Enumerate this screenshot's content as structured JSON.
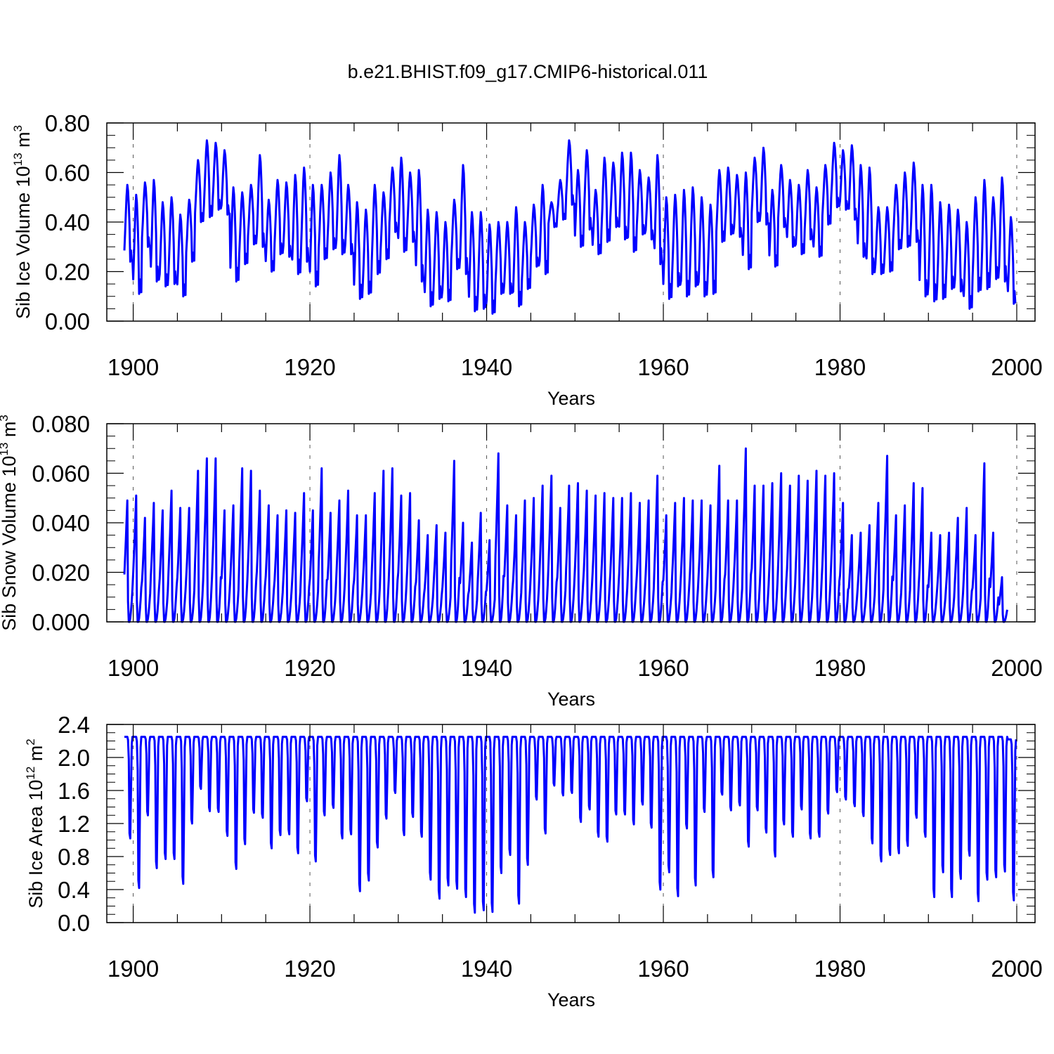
{
  "figure_title": "b.e21.BHIST.f09_g17.CMIP6-historical.011",
  "line_color": "#0000ff",
  "chart_data": [
    {
      "type": "line",
      "series_name": "Sib Ice Volume",
      "ylabel_main": "Sib Ice Volume 10",
      "ylabel_exp": "13",
      "ylabel_unit": " m",
      "ylabel_unit_exp": "3",
      "xlabel": "Years",
      "xlim": [
        1899.0,
        2000.0
      ],
      "ylim": [
        0.0,
        0.8
      ],
      "x_ticks": [
        1900,
        1920,
        1940,
        1960,
        1980,
        2000
      ],
      "x_tick_labels": [
        "1900",
        "1920",
        "1940",
        "1960",
        "1980",
        "2000"
      ],
      "y_ticks": [
        0.0,
        0.2,
        0.4,
        0.6,
        0.8
      ],
      "y_tick_labels": [
        "0.00",
        "0.20",
        "0.40",
        "0.60",
        "0.80"
      ],
      "start_year": 1899.0,
      "annual_max": [
        0.55,
        0.51,
        0.56,
        0.57,
        0.48,
        0.5,
        0.43,
        0.49,
        0.65,
        0.73,
        0.72,
        0.69,
        0.54,
        0.52,
        0.55,
        0.67,
        0.49,
        0.57,
        0.56,
        0.59,
        0.62,
        0.55,
        0.55,
        0.6,
        0.67,
        0.55,
        0.48,
        0.45,
        0.55,
        0.52,
        0.62,
        0.66,
        0.6,
        0.61,
        0.45,
        0.44,
        0.4,
        0.49,
        0.63,
        0.44,
        0.44,
        0.39,
        0.4,
        0.4,
        0.46,
        0.4,
        0.47,
        0.55,
        0.48,
        0.57,
        0.73,
        0.61,
        0.69,
        0.53,
        0.66,
        0.64,
        0.68,
        0.68,
        0.61,
        0.58,
        0.67,
        0.5,
        0.51,
        0.53,
        0.54,
        0.5,
        0.47,
        0.61,
        0.62,
        0.59,
        0.6,
        0.66,
        0.7,
        0.53,
        0.63,
        0.57,
        0.55,
        0.61,
        0.54,
        0.63,
        0.72,
        0.69,
        0.71,
        0.63,
        0.62,
        0.46,
        0.46,
        0.55,
        0.6,
        0.64,
        0.55,
        0.55,
        0.48,
        0.47,
        0.45,
        0.4,
        0.5,
        0.57,
        0.5,
        0.58,
        0.42
      ],
      "annual_min": [
        0.24,
        0.11,
        0.3,
        0.16,
        0.14,
        0.15,
        0.1,
        0.24,
        0.4,
        0.42,
        0.45,
        0.43,
        0.16,
        0.23,
        0.31,
        0.3,
        0.2,
        0.27,
        0.26,
        0.19,
        0.24,
        0.14,
        0.25,
        0.29,
        0.27,
        0.27,
        0.09,
        0.11,
        0.19,
        0.25,
        0.36,
        0.28,
        0.32,
        0.16,
        0.06,
        0.09,
        0.08,
        0.21,
        0.19,
        0.04,
        0.05,
        0.03,
        0.11,
        0.11,
        0.06,
        0.13,
        0.22,
        0.19,
        0.38,
        0.41,
        0.47,
        0.3,
        0.37,
        0.27,
        0.32,
        0.38,
        0.33,
        0.28,
        0.35,
        0.33,
        0.23,
        0.09,
        0.14,
        0.1,
        0.14,
        0.1,
        0.11,
        0.32,
        0.35,
        0.34,
        0.21,
        0.4,
        0.39,
        0.22,
        0.38,
        0.3,
        0.27,
        0.33,
        0.26,
        0.39,
        0.46,
        0.45,
        0.41,
        0.26,
        0.19,
        0.19,
        0.2,
        0.29,
        0.3,
        0.32,
        0.1,
        0.08,
        0.09,
        0.13,
        0.12,
        0.05,
        0.12,
        0.13,
        0.17,
        0.16,
        0.07
      ]
    },
    {
      "type": "line",
      "series_name": "Sib Snow Volume",
      "ylabel_main": "Sib Snow Volume 10",
      "ylabel_exp": "13",
      "ylabel_unit": " m",
      "ylabel_unit_exp": "3",
      "xlabel": "Years",
      "xlim": [
        1899.0,
        2000.0
      ],
      "ylim": [
        0.0,
        0.08
      ],
      "x_ticks": [
        1900,
        1920,
        1940,
        1960,
        1980,
        2000
      ],
      "x_tick_labels": [
        "1900",
        "1920",
        "1940",
        "1960",
        "1980",
        "2000"
      ],
      "y_ticks": [
        0.0,
        0.02,
        0.04,
        0.06,
        0.08
      ],
      "y_tick_labels": [
        "0.000",
        "0.020",
        "0.040",
        "0.060",
        "0.080"
      ],
      "start_year": 1899.0,
      "annual_max": [
        0.049,
        0.051,
        0.042,
        0.048,
        0.045,
        0.053,
        0.046,
        0.046,
        0.061,
        0.066,
        0.066,
        0.045,
        0.047,
        0.062,
        0.061,
        0.053,
        0.047,
        0.043,
        0.045,
        0.044,
        0.052,
        0.045,
        0.062,
        0.044,
        0.049,
        0.053,
        0.043,
        0.043,
        0.052,
        0.061,
        0.062,
        0.051,
        0.052,
        0.041,
        0.035,
        0.039,
        0.036,
        0.065,
        0.04,
        0.032,
        0.044,
        0.033,
        0.068,
        0.047,
        0.043,
        0.049,
        0.05,
        0.055,
        0.059,
        0.046,
        0.055,
        0.056,
        0.053,
        0.051,
        0.052,
        0.05,
        0.05,
        0.052,
        0.048,
        0.049,
        0.059,
        0.043,
        0.048,
        0.05,
        0.049,
        0.049,
        0.047,
        0.063,
        0.049,
        0.049,
        0.07,
        0.055,
        0.055,
        0.056,
        0.06,
        0.055,
        0.059,
        0.057,
        0.061,
        0.059,
        0.06,
        0.048,
        0.035,
        0.036,
        0.039,
        0.048,
        0.067,
        0.043,
        0.047,
        0.056,
        0.054,
        0.036,
        0.035,
        0.036,
        0.042,
        0.046,
        0.035,
        0.064,
        0.036,
        0.018
      ],
      "annual_min": [
        0.0,
        0.0,
        0.0,
        0.0,
        0.0,
        0.0,
        0.0,
        0.0,
        0.0,
        0.0,
        0.0,
        0.0,
        0.0,
        0.0,
        0.0,
        0.0,
        0.0,
        0.0,
        0.0,
        0.0,
        0.0,
        0.0,
        0.0,
        0.0,
        0.0,
        0.0,
        0.0,
        0.0,
        0.0,
        0.0,
        0.0,
        0.0,
        0.0,
        0.0,
        0.0,
        0.0,
        0.0,
        0.0,
        0.0,
        0.0,
        0.0,
        0.0,
        0.0,
        0.0,
        0.0,
        0.0,
        0.0,
        0.0,
        0.0,
        0.0,
        0.0,
        0.0,
        0.0,
        0.0,
        0.0,
        0.0,
        0.0,
        0.0,
        0.0,
        0.0,
        0.0,
        0.0,
        0.0,
        0.0,
        0.0,
        0.0,
        0.0,
        0.0,
        0.0,
        0.0,
        0.0,
        0.0,
        0.0,
        0.0,
        0.0,
        0.0,
        0.0,
        0.0,
        0.0,
        0.0,
        0.0,
        0.0,
        0.0,
        0.0,
        0.0,
        0.0,
        0.0,
        0.0,
        0.0,
        0.0,
        0.0,
        0.0,
        0.0,
        0.0,
        0.0,
        0.0,
        0.0,
        0.0,
        0.0,
        0.0
      ]
    },
    {
      "type": "line",
      "series_name": "Sib Ice Area",
      "ylabel_main": "Sib Ice Area 10",
      "ylabel_exp": "12",
      "ylabel_unit": " m",
      "ylabel_unit_exp": "2",
      "xlabel": "Years",
      "xlim": [
        1899.0,
        2000.0
      ],
      "ylim": [
        0.0,
        2.4
      ],
      "x_ticks": [
        1900,
        1920,
        1940,
        1960,
        1980,
        2000
      ],
      "x_tick_labels": [
        "1900",
        "1920",
        "1940",
        "1960",
        "1980",
        "2000"
      ],
      "y_ticks": [
        0.0,
        0.4,
        0.8,
        1.2,
        1.6,
        2.0,
        2.4
      ],
      "y_tick_labels": [
        "0.0",
        "0.4",
        "0.8",
        "1.2",
        "1.6",
        "2.0",
        "2.4"
      ],
      "start_year": 1899.0,
      "annual_max": [
        2.25,
        2.25,
        2.25,
        2.25,
        2.25,
        2.25,
        2.25,
        2.25,
        2.25,
        2.25,
        2.25,
        2.25,
        2.25,
        2.25,
        2.25,
        2.25,
        2.25,
        2.25,
        2.25,
        2.25,
        2.25,
        2.25,
        2.25,
        2.25,
        2.25,
        2.25,
        2.25,
        2.25,
        2.25,
        2.25,
        2.25,
        2.25,
        2.25,
        2.25,
        2.25,
        2.25,
        2.25,
        2.25,
        2.25,
        2.25,
        2.25,
        2.25,
        2.25,
        2.25,
        2.25,
        2.25,
        2.25,
        2.25,
        2.25,
        2.25,
        2.25,
        2.25,
        2.25,
        2.25,
        2.25,
        2.25,
        2.25,
        2.25,
        2.25,
        2.25,
        2.25,
        2.25,
        2.25,
        2.25,
        2.25,
        2.25,
        2.25,
        2.25,
        2.25,
        2.25,
        2.25,
        2.25,
        2.25,
        2.25,
        2.25,
        2.25,
        2.25,
        2.25,
        2.25,
        2.25,
        2.25,
        2.25,
        2.25,
        2.25,
        2.25,
        2.25,
        2.25,
        2.25,
        2.25,
        2.25,
        2.25,
        2.25,
        2.25,
        2.25,
        2.25,
        2.25,
        2.25,
        2.25,
        2.25,
        2.25,
        2.22
      ],
      "annual_min": [
        1.02,
        0.42,
        1.3,
        0.66,
        0.77,
        0.77,
        0.47,
        1.2,
        1.62,
        1.35,
        1.34,
        1.05,
        0.65,
        0.95,
        1.33,
        1.27,
        0.9,
        1.06,
        1.07,
        0.84,
        1.47,
        0.74,
        1.3,
        1.39,
        1.02,
        1.07,
        0.38,
        0.51,
        0.91,
        1.26,
        1.57,
        1.06,
        1.28,
        1.04,
        0.52,
        0.29,
        0.45,
        0.41,
        0.31,
        0.12,
        0.15,
        0.13,
        0.6,
        0.82,
        0.23,
        0.7,
        1.49,
        1.08,
        1.66,
        1.54,
        1.57,
        1.22,
        1.37,
        1.04,
        0.98,
        1.31,
        1.31,
        1.19,
        1.43,
        1.15,
        0.4,
        0.61,
        0.32,
        1.14,
        0.45,
        1.34,
        0.55,
        1.55,
        1.36,
        1.42,
        0.92,
        1.36,
        1.09,
        0.8,
        1.19,
        1.04,
        1.37,
        1.02,
        1.04,
        1.32,
        1.58,
        1.49,
        1.41,
        1.29,
        0.96,
        0.74,
        0.82,
        0.84,
        0.93,
        1.27,
        1.04,
        0.31,
        0.61,
        0.31,
        0.53,
        0.81,
        0.26,
        0.52,
        0.55,
        0.62,
        0.27
      ]
    }
  ]
}
